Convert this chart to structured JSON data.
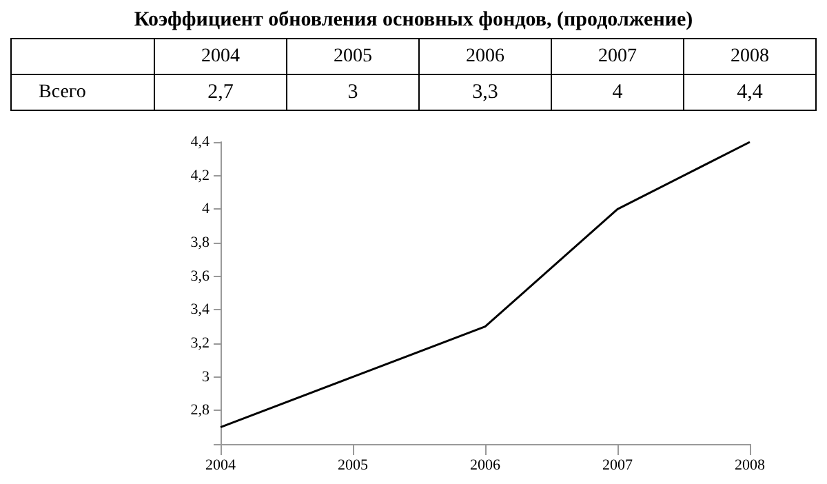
{
  "chart_data": {
    "type": "line",
    "title": "Коэффициент обновления основных фондов, (продолжение)",
    "categories": [
      "2004",
      "2005",
      "2006",
      "2007",
      "2008"
    ],
    "series": [
      {
        "name": "Всего",
        "color": "#000000",
        "values": [
          2.7,
          3.0,
          3.3,
          4.0,
          4.4
        ],
        "value_labels": [
          "2,7",
          "3",
          "3,3",
          "4",
          "4,4"
        ]
      }
    ],
    "ylim": [
      2.6,
      4.4
    ],
    "yticks": [
      {
        "value": 2.6,
        "label": null
      },
      {
        "value": 2.8,
        "label": "2,8"
      },
      3,
      {
        "value": 3.2,
        "label": "3,2"
      },
      {
        "value": 3.4,
        "label": "3,4"
      },
      {
        "value": 3.6,
        "label": "3,6"
      },
      {
        "value": 3.8,
        "label": "3,8"
      },
      4,
      {
        "value": 4.2,
        "label": "4,2"
      },
      {
        "value": 4.4,
        "label": "4,4"
      }
    ],
    "grid": false,
    "legend": false,
    "marker": "none",
    "line_style": "solid"
  }
}
